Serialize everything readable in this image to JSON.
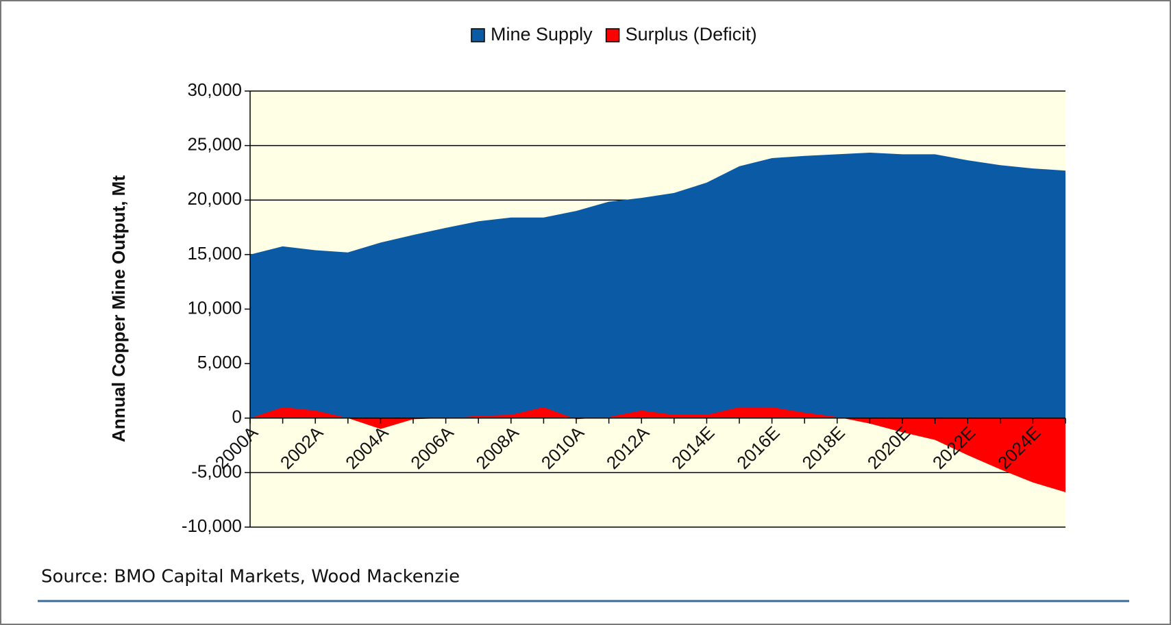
{
  "chart_data": {
    "type": "area",
    "y_label": "Annual Copper Mine Output, Mt",
    "source": "Source: BMO Capital Markets, Wood Mackenzie",
    "categories": [
      "2000A",
      null,
      "2002A",
      null,
      "2004A",
      null,
      "2006A",
      null,
      "2008A",
      null,
      "2010A",
      null,
      "2012A",
      null,
      "2014E",
      null,
      "2016E",
      null,
      "2018E",
      null,
      "2020E",
      null,
      "2022E",
      null,
      "2024E",
      null
    ],
    "series": [
      {
        "name": "Mine Supply",
        "color": "#0b5aa6",
        "values": [
          15000,
          15750,
          15400,
          15200,
          16100,
          16800,
          17450,
          18050,
          18400,
          18400,
          19000,
          19850,
          20200,
          20650,
          21600,
          23100,
          23850,
          24050,
          24200,
          24350,
          24200,
          24200,
          23650,
          23200,
          22900,
          22700
        ]
      },
      {
        "name": "Surplus (Deficit)",
        "color": "#ff0000",
        "values": [
          0,
          1000,
          700,
          0,
          -1000,
          -100,
          0,
          200,
          300,
          1000,
          -100,
          100,
          700,
          300,
          300,
          1000,
          1000,
          500,
          100,
          -500,
          -1300,
          -2000,
          -3400,
          -4700,
          -5900,
          -6800
        ]
      }
    ],
    "ylim": [
      -10000,
      30000
    ],
    "yticks": [
      {
        "value": -10000,
        "label": "-10,000"
      },
      {
        "value": -5000,
        "label": "-5,000"
      },
      0,
      {
        "value": 5000,
        "label": "5,000"
      },
      {
        "value": 10000,
        "label": "10,000"
      },
      {
        "value": 15000,
        "label": "15,000"
      },
      {
        "value": 20000,
        "label": "20,000"
      },
      {
        "value": 25000,
        "label": "25,000"
      },
      {
        "value": 30000,
        "label": "30,000"
      }
    ],
    "grid": true
  }
}
